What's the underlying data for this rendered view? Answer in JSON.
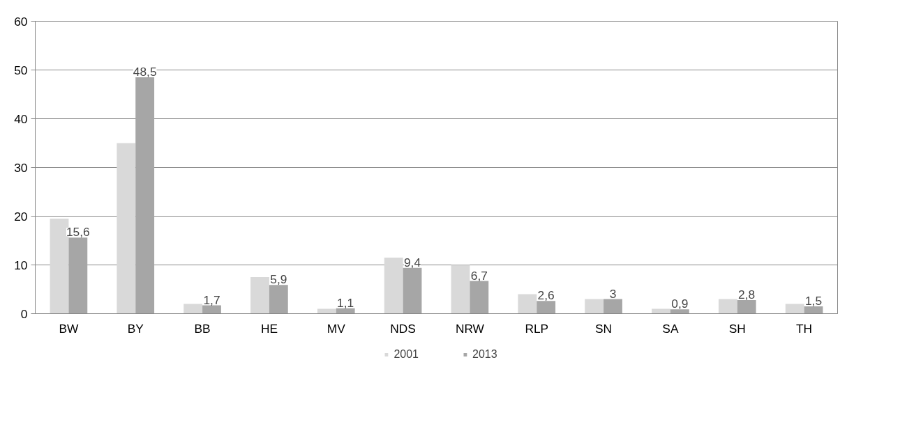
{
  "chart_data": {
    "type": "bar",
    "categories": [
      "BW",
      "BY",
      "BB",
      "HE",
      "MV",
      "NDS",
      "NRW",
      "RLP",
      "SN",
      "SA",
      "SH",
      "TH"
    ],
    "series": [
      {
        "name": "2001",
        "color": "#d9d9d9",
        "values": [
          19.5,
          35,
          2,
          7.5,
          1,
          11.5,
          10,
          4,
          3,
          1,
          3,
          2
        ]
      },
      {
        "name": "2013",
        "color": "#a6a6a6",
        "values": [
          15.6,
          48.5,
          1.7,
          5.9,
          1.1,
          9.4,
          6.7,
          2.6,
          3,
          0.9,
          2.8,
          1.5
        ],
        "value_labels": [
          "15,6",
          "48,5",
          "1,7",
          "5,9",
          "1,1",
          "9,4",
          "6,7",
          "2,6",
          "3",
          "0,9",
          "2,8",
          "1,5"
        ]
      }
    ],
    "ylim": [
      0,
      60
    ],
    "yticks": [
      0,
      10,
      20,
      30,
      40,
      50,
      60
    ],
    "grid": "y",
    "legend": "bottom"
  }
}
